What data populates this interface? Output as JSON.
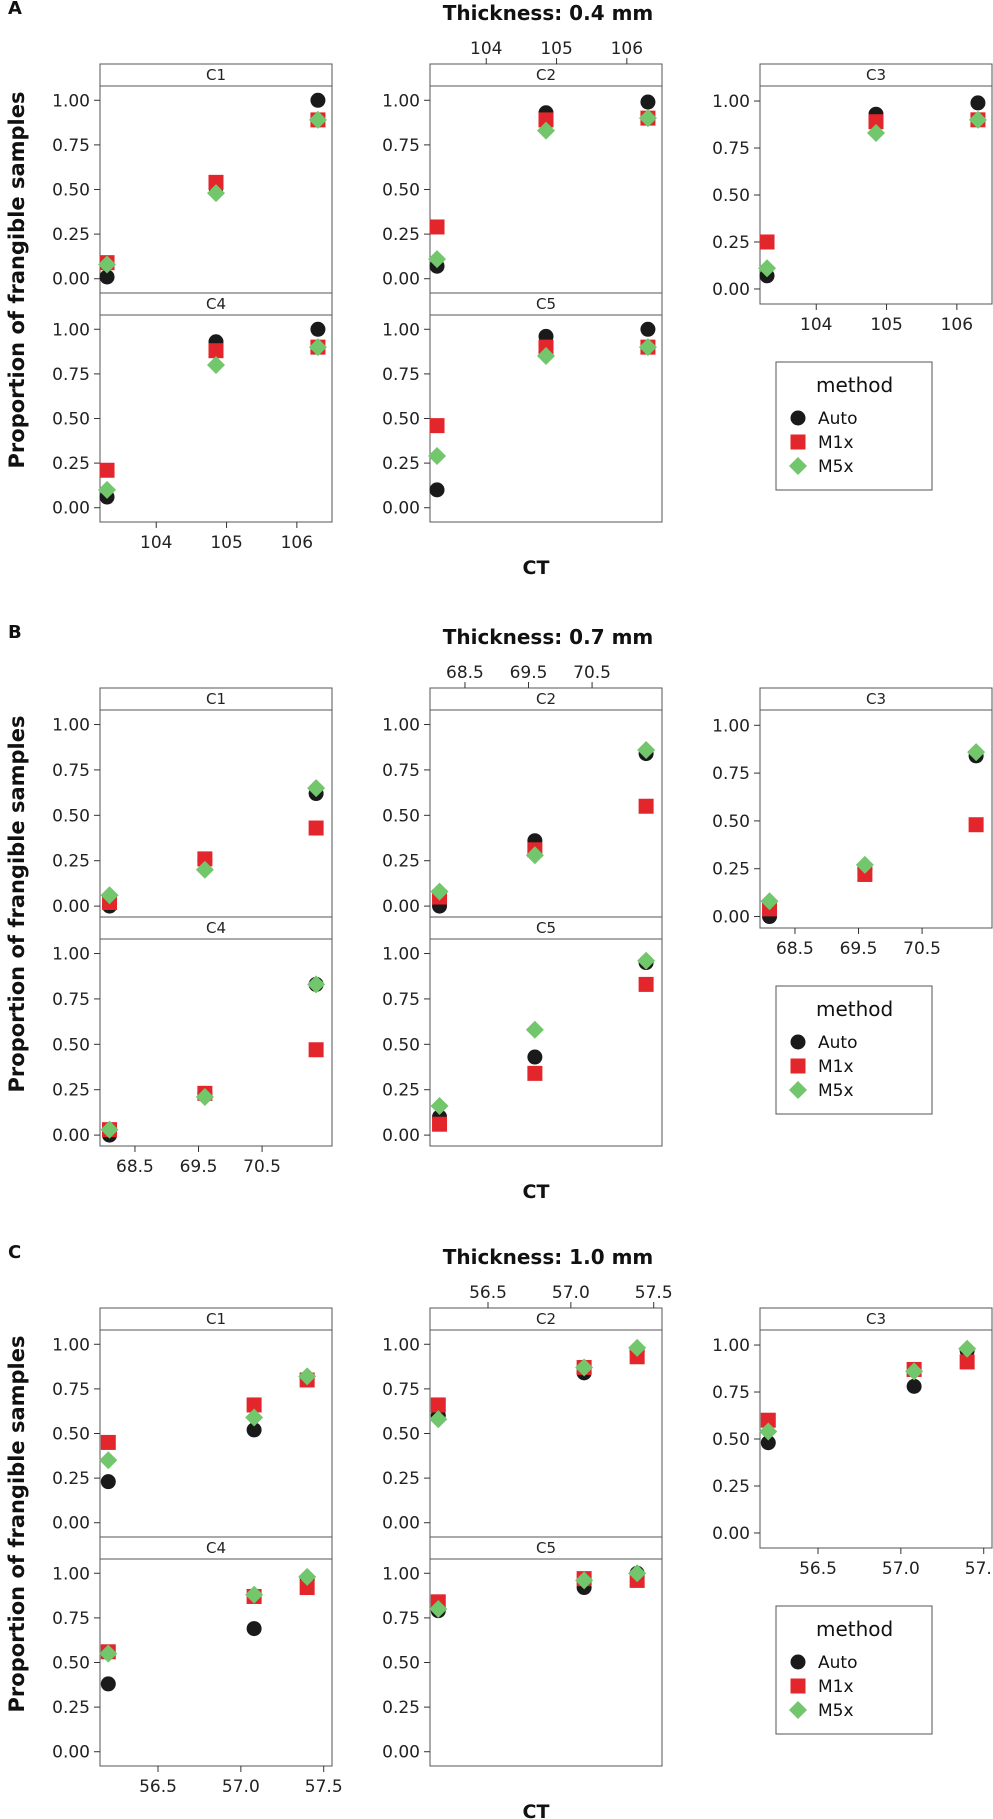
{
  "colors": {
    "Auto": "#1a1a1a",
    "M1x": "#e3262c",
    "M5x": "#72c66b"
  },
  "markers": {
    "Auto": "circle",
    "M1x": "square",
    "M5x": "diamond"
  },
  "chart_data": [
    {
      "type": "scatter",
      "panel_label": "A",
      "title": "Thickness:  0.4 mm",
      "ylabel": "Proportion of frangible samples",
      "xlabel": "CT",
      "xlim": [
        103.2,
        106.5
      ],
      "ylim": [
        -0.08,
        1.08
      ],
      "x_ticks": [
        "104",
        "105",
        "106"
      ],
      "x_tick_values": [
        104,
        105,
        106
      ],
      "y_ticks": [
        "0.00",
        "0.25",
        "0.50",
        "0.75",
        "1.00"
      ],
      "y_tick_values": [
        0,
        0.25,
        0.5,
        0.75,
        1.0
      ],
      "legend_title": "method",
      "legend": [
        "Auto",
        "M1x",
        "M5x"
      ],
      "x": [
        103.3,
        104.85,
        106.3
      ],
      "panels": [
        {
          "name": "C1",
          "series": [
            {
              "name": "Auto",
              "values": [
                0.01,
                0.51,
                1.0
              ]
            },
            {
              "name": "M1x",
              "values": [
                0.09,
                0.54,
                0.89
              ]
            },
            {
              "name": "M5x",
              "values": [
                0.08,
                0.48,
                0.89
              ]
            }
          ]
        },
        {
          "name": "C2",
          "series": [
            {
              "name": "Auto",
              "values": [
                0.07,
                0.93,
                0.99
              ]
            },
            {
              "name": "M1x",
              "values": [
                0.29,
                0.89,
                0.9
              ]
            },
            {
              "name": "M5x",
              "values": [
                0.11,
                0.83,
                0.9
              ]
            }
          ]
        },
        {
          "name": "C3",
          "series": [
            {
              "name": "Auto",
              "values": [
                0.07,
                0.93,
                0.99
              ]
            },
            {
              "name": "M1x",
              "values": [
                0.25,
                0.89,
                0.9
              ]
            },
            {
              "name": "M5x",
              "values": [
                0.11,
                0.83,
                0.9
              ]
            }
          ]
        },
        {
          "name": "C4",
          "series": [
            {
              "name": "Auto",
              "values": [
                0.06,
                0.93,
                1.0
              ]
            },
            {
              "name": "M1x",
              "values": [
                0.21,
                0.88,
                0.9
              ]
            },
            {
              "name": "M5x",
              "values": [
                0.1,
                0.8,
                0.9
              ]
            }
          ]
        },
        {
          "name": "C5",
          "series": [
            {
              "name": "Auto",
              "values": [
                0.1,
                0.96,
                1.0
              ]
            },
            {
              "name": "M1x",
              "values": [
                0.46,
                0.9,
                0.9
              ]
            },
            {
              "name": "M5x",
              "values": [
                0.29,
                0.85,
                0.9
              ]
            }
          ]
        }
      ]
    },
    {
      "type": "scatter",
      "panel_label": "B",
      "title": "Thickness:  0.7 mm",
      "ylabel": "Proportion of frangible samples",
      "xlabel": "CT",
      "xlim": [
        67.95,
        71.6
      ],
      "ylim": [
        -0.06,
        1.08
      ],
      "x_ticks": [
        "68.5",
        "69.5",
        "70.5"
      ],
      "x_tick_values": [
        68.5,
        69.5,
        70.5
      ],
      "y_ticks": [
        "0.00",
        "0.25",
        "0.50",
        "0.75",
        "1.00"
      ],
      "y_tick_values": [
        0,
        0.25,
        0.5,
        0.75,
        1.0
      ],
      "legend_title": "method",
      "legend": [
        "Auto",
        "M1x",
        "M5x"
      ],
      "x": [
        68.1,
        69.6,
        71.35
      ],
      "panels": [
        {
          "name": "C1",
          "series": [
            {
              "name": "Auto",
              "values": [
                0.0,
                0.25,
                0.62
              ]
            },
            {
              "name": "M1x",
              "values": [
                0.02,
                0.26,
                0.43
              ]
            },
            {
              "name": "M5x",
              "values": [
                0.06,
                0.2,
                0.65
              ]
            }
          ]
        },
        {
          "name": "C2",
          "series": [
            {
              "name": "Auto",
              "values": [
                0.0,
                0.36,
                0.84
              ]
            },
            {
              "name": "M1x",
              "values": [
                0.05,
                0.31,
                0.55
              ]
            },
            {
              "name": "M5x",
              "values": [
                0.08,
                0.28,
                0.86
              ]
            }
          ]
        },
        {
          "name": "C3",
          "series": [
            {
              "name": "Auto",
              "values": [
                0.0,
                0.25,
                0.84
              ]
            },
            {
              "name": "M1x",
              "values": [
                0.04,
                0.22,
                0.48
              ]
            },
            {
              "name": "M5x",
              "values": [
                0.08,
                0.27,
                0.86
              ]
            }
          ]
        },
        {
          "name": "C4",
          "series": [
            {
              "name": "Auto",
              "values": [
                0.0,
                0.23,
                0.83
              ]
            },
            {
              "name": "M1x",
              "values": [
                0.03,
                0.23,
                0.47
              ]
            },
            {
              "name": "M5x",
              "values": [
                0.03,
                0.21,
                0.83
              ]
            }
          ]
        },
        {
          "name": "C5",
          "series": [
            {
              "name": "Auto",
              "values": [
                0.1,
                0.43,
                0.95
              ]
            },
            {
              "name": "M1x",
              "values": [
                0.06,
                0.34,
                0.83
              ]
            },
            {
              "name": "M5x",
              "values": [
                0.16,
                0.58,
                0.96
              ]
            }
          ]
        }
      ]
    },
    {
      "type": "scatter",
      "panel_label": "C",
      "title": "Thickness:  1.0 mm",
      "ylabel": "Proportion of frangible samples",
      "xlabel": "CT",
      "xlim": [
        56.15,
        57.55
      ],
      "ylim": [
        -0.08,
        1.08
      ],
      "x_ticks": [
        "56.5",
        "57.0",
        "57.5"
      ],
      "x_tick_values": [
        56.5,
        57.0,
        57.5
      ],
      "y_ticks": [
        "0.00",
        "0.25",
        "0.50",
        "0.75",
        "1.00"
      ],
      "y_tick_values": [
        0,
        0.25,
        0.5,
        0.75,
        1.0
      ],
      "legend_title": "method",
      "legend": [
        "Auto",
        "M1x",
        "M5x"
      ],
      "x": [
        56.2,
        57.08,
        57.4
      ],
      "panels": [
        {
          "name": "C1",
          "series": [
            {
              "name": "Auto",
              "values": [
                0.23,
                0.52,
                0.81
              ]
            },
            {
              "name": "M1x",
              "values": [
                0.45,
                0.66,
                0.8
              ]
            },
            {
              "name": "M5x",
              "values": [
                0.35,
                0.59,
                0.82
              ]
            }
          ]
        },
        {
          "name": "C2",
          "series": [
            {
              "name": "Auto",
              "values": [
                0.6,
                0.84,
                0.96
              ]
            },
            {
              "name": "M1x",
              "values": [
                0.66,
                0.87,
                0.93
              ]
            },
            {
              "name": "M5x",
              "values": [
                0.58,
                0.87,
                0.98
              ]
            }
          ]
        },
        {
          "name": "C3",
          "series": [
            {
              "name": "Auto",
              "values": [
                0.48,
                0.78,
                0.97
              ]
            },
            {
              "name": "M1x",
              "values": [
                0.6,
                0.87,
                0.91
              ]
            },
            {
              "name": "M5x",
              "values": [
                0.54,
                0.86,
                0.98
              ]
            }
          ]
        },
        {
          "name": "C4",
          "series": [
            {
              "name": "Auto",
              "values": [
                0.38,
                0.69,
                0.97
              ]
            },
            {
              "name": "M1x",
              "values": [
                0.56,
                0.87,
                0.92
              ]
            },
            {
              "name": "M5x",
              "values": [
                0.55,
                0.88,
                0.98
              ]
            }
          ]
        },
        {
          "name": "C5",
          "series": [
            {
              "name": "Auto",
              "values": [
                0.79,
                0.92,
                1.0
              ]
            },
            {
              "name": "M1x",
              "values": [
                0.84,
                0.97,
                0.96
              ]
            },
            {
              "name": "M5x",
              "values": [
                0.8,
                0.96,
                1.0
              ]
            }
          ]
        }
      ]
    }
  ]
}
